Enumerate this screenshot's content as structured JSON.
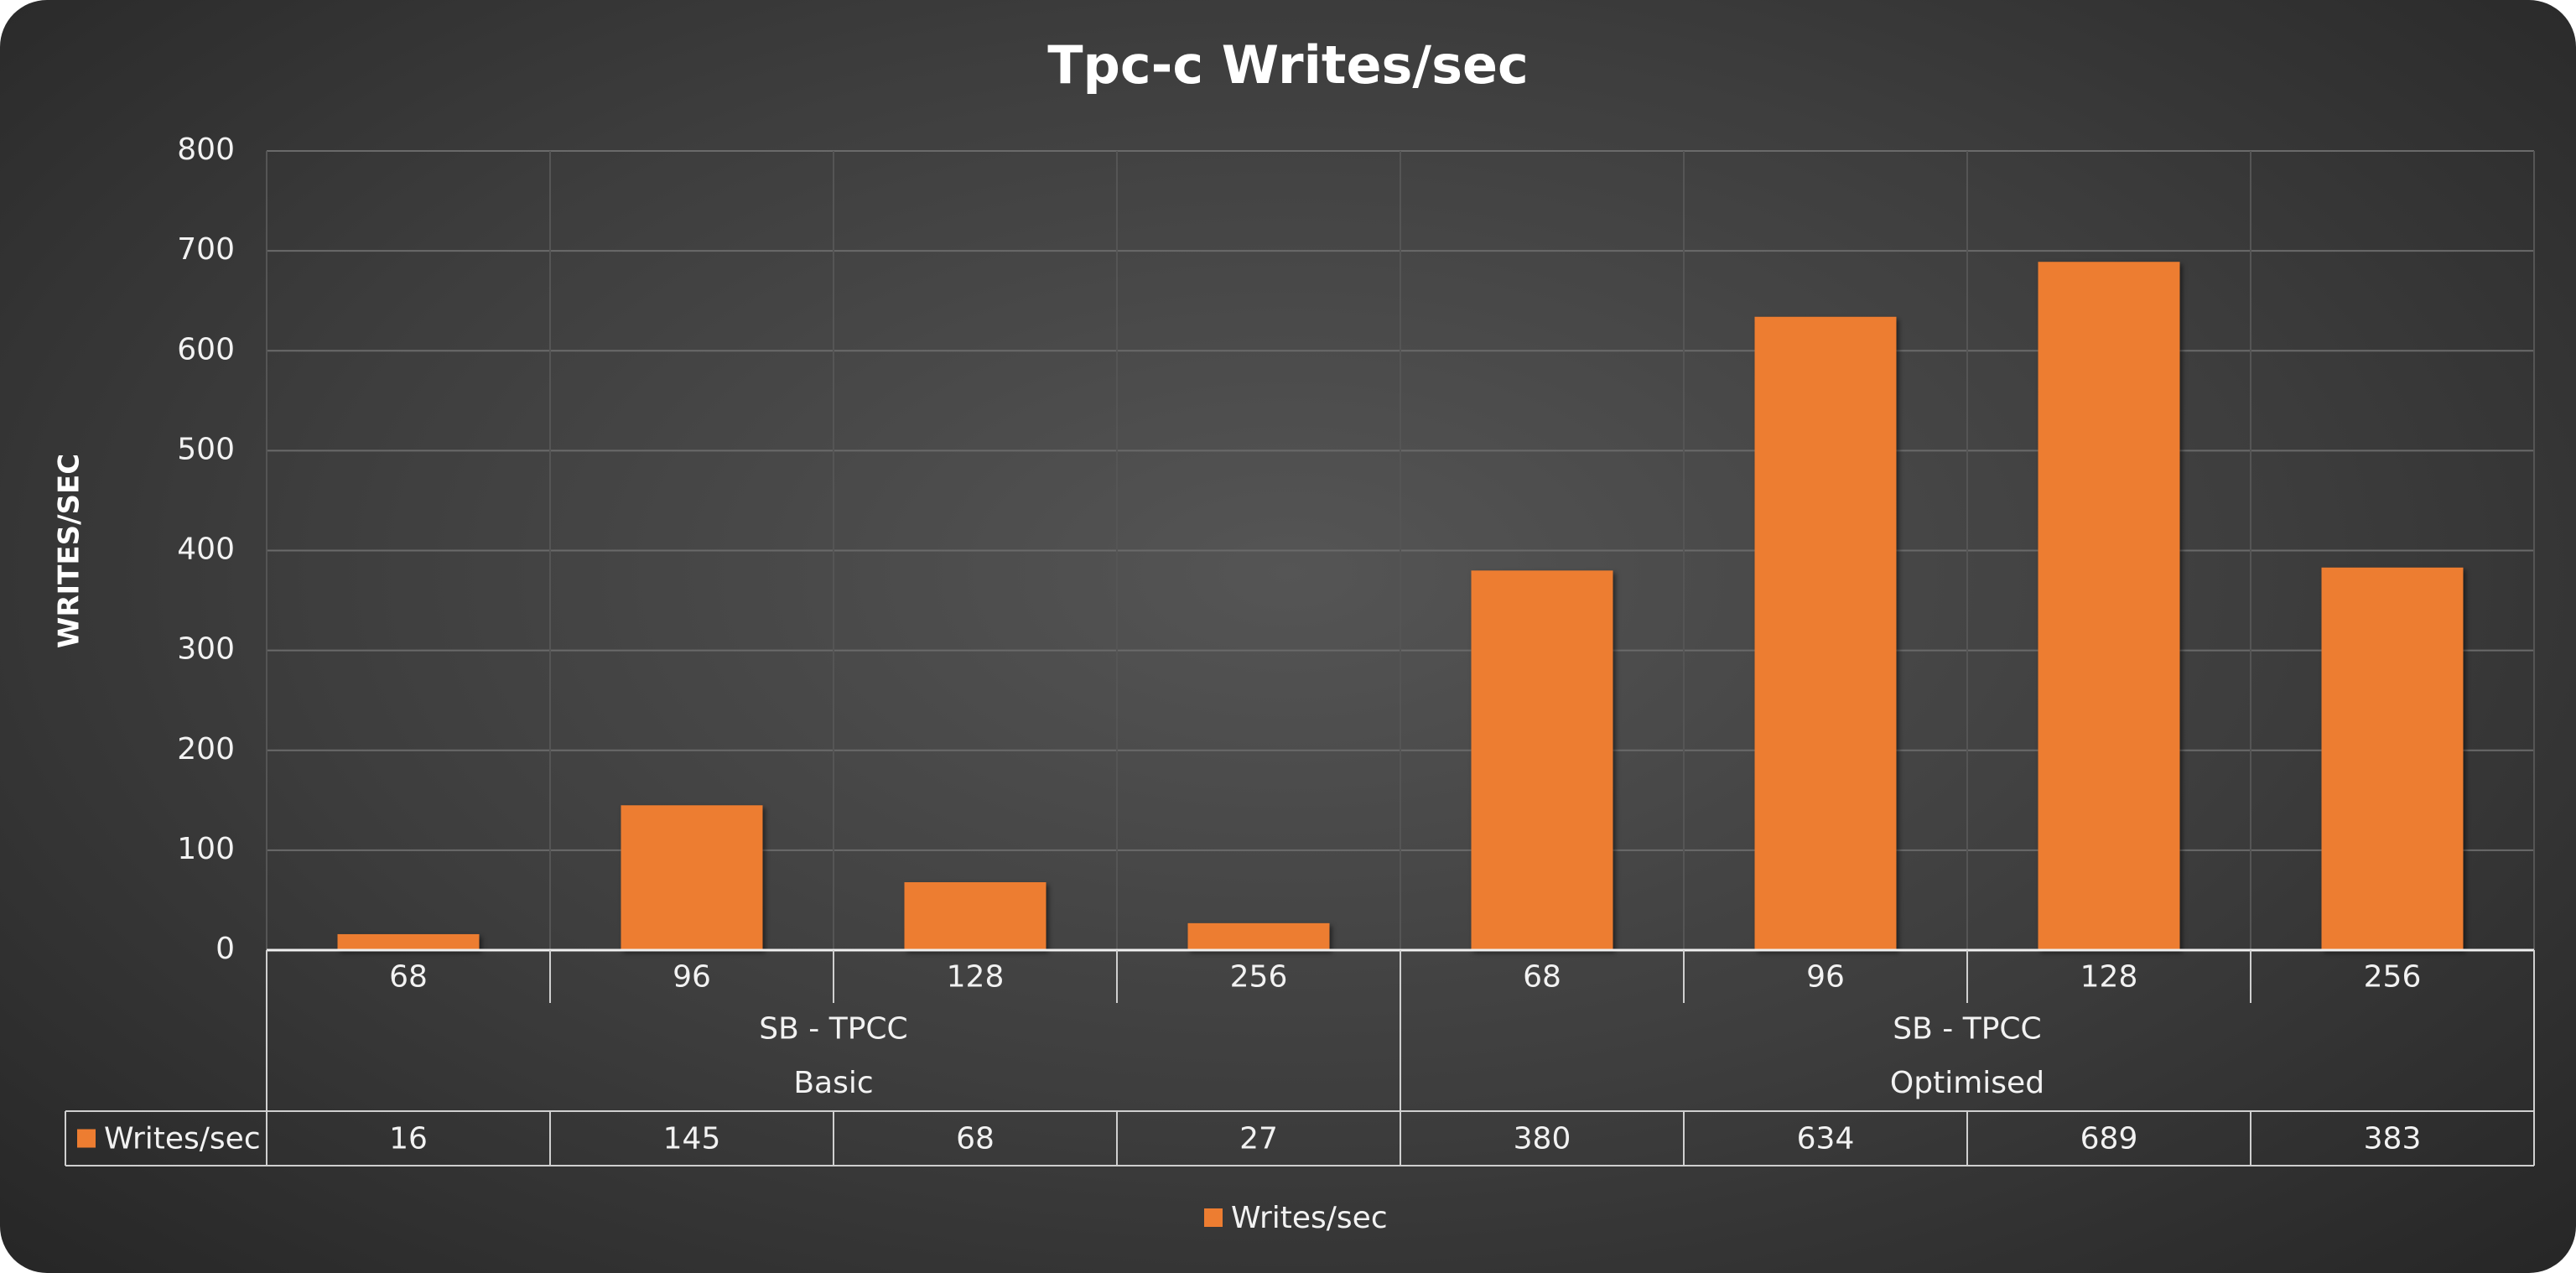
{
  "chart_data": {
    "type": "bar",
    "title": "Tpc-c Writes/sec",
    "y_label": "WRITES/SEC",
    "groups": [
      {
        "lines": [
          "SB - TPCC",
          "Basic"
        ],
        "categories": [
          "68",
          "96",
          "128",
          "256"
        ]
      },
      {
        "lines": [
          "SB - TPCC",
          "Optimised"
        ],
        "categories": [
          "68",
          "96",
          "128",
          "256"
        ]
      }
    ],
    "series": [
      {
        "name": "Writes/sec",
        "color": "#ed7d31",
        "values": [
          16,
          145,
          68,
          27,
          380,
          634,
          689,
          383
        ]
      }
    ],
    "ylim": [
      0,
      800
    ],
    "yticks": [
      0,
      100,
      200,
      300,
      400,
      500,
      600,
      700,
      800
    ],
    "grid": true,
    "data_table": true,
    "legend": "bottom"
  }
}
